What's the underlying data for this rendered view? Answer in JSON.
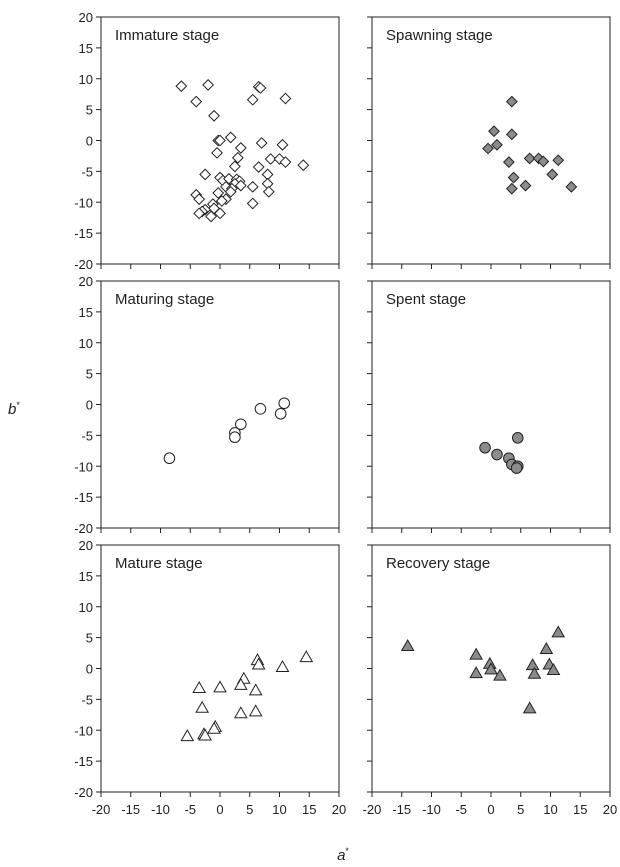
{
  "chart_data": {
    "type": "scatter",
    "layout": "3 rows x 2 columns of panels, shared axes",
    "xlabel": "a",
    "xlabel_sup": "*",
    "ylabel": "b",
    "ylabel_sup": "*",
    "xlim": [
      -20,
      20
    ],
    "ylim": [
      -20,
      20
    ],
    "x_ticks": [
      -20,
      -15,
      -10,
      -5,
      0,
      5,
      10,
      15,
      20
    ],
    "y_ticks": [
      -20,
      -15,
      -10,
      -5,
      0,
      5,
      10,
      15,
      20
    ],
    "grid": false,
    "panels": [
      {
        "title": "Immature stage",
        "marker": "diamond",
        "fill": "#ffffff",
        "points": [
          [
            -6.5,
            8.8
          ],
          [
            -2,
            9
          ],
          [
            -4,
            6.3
          ],
          [
            -1,
            4
          ],
          [
            6.5,
            8.7
          ],
          [
            6.8,
            8.5
          ],
          [
            5.5,
            6.6
          ],
          [
            11,
            6.8
          ],
          [
            -0.3,
            0
          ],
          [
            0,
            0
          ],
          [
            1.8,
            0.5
          ],
          [
            -0.5,
            -2
          ],
          [
            3.5,
            -1.2
          ],
          [
            7,
            -0.4
          ],
          [
            10.5,
            -0.7
          ],
          [
            8.5,
            -3
          ],
          [
            10,
            -3
          ],
          [
            11,
            -3.5
          ],
          [
            14,
            -4
          ],
          [
            6.5,
            -4.3
          ],
          [
            8,
            -5.5
          ],
          [
            3,
            -2.8
          ],
          [
            2.5,
            -4.2
          ],
          [
            -2.5,
            -5.5
          ],
          [
            0,
            -6
          ],
          [
            0.5,
            -6.5
          ],
          [
            1.5,
            -6.2
          ],
          [
            2.8,
            -6.3
          ],
          [
            3.3,
            -6.6
          ],
          [
            2.5,
            -7
          ],
          [
            3.5,
            -7.3
          ],
          [
            5.5,
            -7.5
          ],
          [
            8,
            -7
          ],
          [
            8.2,
            -8.3
          ],
          [
            1,
            -7.5
          ],
          [
            2,
            -7.8
          ],
          [
            1.8,
            -8.3
          ],
          [
            -0.3,
            -8.5
          ],
          [
            1,
            -9.5
          ],
          [
            0.3,
            -9.8
          ],
          [
            -1.2,
            -10.3
          ],
          [
            -4,
            -8.8
          ],
          [
            -3.5,
            -9.5
          ],
          [
            -1,
            -11
          ],
          [
            -2.5,
            -11.2
          ],
          [
            -3,
            -11.5
          ],
          [
            -3.5,
            -11.8
          ],
          [
            0,
            -11.8
          ],
          [
            -1.5,
            -12.3
          ],
          [
            5.5,
            -10.2
          ]
        ]
      },
      {
        "title": "Spawning stage",
        "marker": "diamond",
        "fill": "#8c8c8c",
        "points": [
          [
            3.5,
            6.3
          ],
          [
            0.5,
            1.5
          ],
          [
            3.5,
            1
          ],
          [
            1,
            -0.7
          ],
          [
            -0.5,
            -1.3
          ],
          [
            3,
            -3.5
          ],
          [
            6.5,
            -2.9
          ],
          [
            8,
            -2.9
          ],
          [
            8.8,
            -3.4
          ],
          [
            11.3,
            -3.2
          ],
          [
            3.8,
            -6
          ],
          [
            5.8,
            -7.3
          ],
          [
            3.5,
            -7.8
          ],
          [
            13.5,
            -7.5
          ],
          [
            10.3,
            -5.5
          ]
        ]
      },
      {
        "title": "Maturing stage",
        "marker": "circle",
        "fill": "#ffffff",
        "points": [
          [
            -8.5,
            -8.7
          ],
          [
            2.5,
            -4.6
          ],
          [
            2.5,
            -5.3
          ],
          [
            3.5,
            -3.2
          ],
          [
            6.8,
            -0.7
          ],
          [
            10.8,
            0.2
          ],
          [
            10.2,
            -1.5
          ]
        ]
      },
      {
        "title": "Spent stage",
        "marker": "circle",
        "fill": "#8c8c8c",
        "points": [
          [
            -1,
            -7
          ],
          [
            1,
            -8.1
          ],
          [
            3,
            -8.7
          ],
          [
            3.5,
            -9.7
          ],
          [
            4.5,
            -10
          ],
          [
            4.3,
            -10.3
          ],
          [
            4.5,
            -5.4
          ]
        ]
      },
      {
        "title": "Mature stage",
        "marker": "triangle",
        "fill": "#ffffff",
        "points": [
          [
            14.5,
            1.8
          ],
          [
            6.3,
            1.3
          ],
          [
            6.5,
            0.6
          ],
          [
            10.5,
            0.2
          ],
          [
            -3.5,
            -3.2
          ],
          [
            0,
            -3.1
          ],
          [
            6,
            -3.6
          ],
          [
            4,
            -1.7
          ],
          [
            3.5,
            -2.7
          ],
          [
            -3,
            -6.4
          ],
          [
            3.5,
            -7.3
          ],
          [
            6,
            -7
          ],
          [
            -0.8,
            -9.5
          ],
          [
            -1,
            -9.8
          ],
          [
            -2.7,
            -10.7
          ],
          [
            -2.5,
            -10.9
          ],
          [
            -5.5,
            -11
          ]
        ]
      },
      {
        "title": "Recovery stage",
        "marker": "triangle",
        "fill": "#8c8c8c",
        "points": [
          [
            -14,
            3.6
          ],
          [
            11.3,
            5.8
          ],
          [
            9.3,
            3.1
          ],
          [
            -2.5,
            2.2
          ],
          [
            -0.2,
            0.7
          ],
          [
            0,
            -0.2
          ],
          [
            7,
            0.5
          ],
          [
            9.8,
            0.6
          ],
          [
            -2.5,
            -0.8
          ],
          [
            1.5,
            -1.2
          ],
          [
            7.3,
            -0.9
          ],
          [
            10.5,
            -0.3
          ],
          [
            6.5,
            -6.5
          ]
        ]
      }
    ]
  }
}
